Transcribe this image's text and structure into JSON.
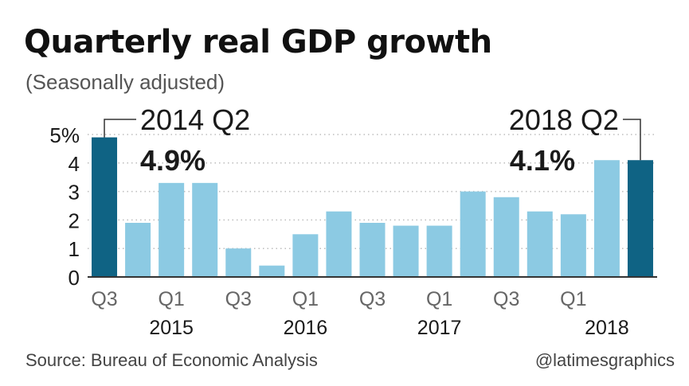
{
  "chart_data": {
    "type": "bar",
    "title": "Quarterly real GDP growth",
    "subtitle": "(Seasonally adjusted)",
    "ylabel": "",
    "xlabel": "",
    "ylim": [
      0,
      5
    ],
    "yticks": [
      {
        "value": 0,
        "label": "0"
      },
      {
        "value": 1,
        "label": "1"
      },
      {
        "value": 2,
        "label": "2"
      },
      {
        "value": 3,
        "label": "3"
      },
      {
        "value": 4,
        "label": "4"
      },
      {
        "value": 5,
        "label": "5%"
      }
    ],
    "grid": true,
    "categories": [
      "2014 Q2",
      "2014 Q3",
      "2014 Q4",
      "2015 Q1",
      "2015 Q2",
      "2015 Q3",
      "2015 Q4",
      "2016 Q1",
      "2016 Q2",
      "2016 Q3",
      "2016 Q4",
      "2017 Q1",
      "2017 Q2",
      "2017 Q3",
      "2017 Q4",
      "2018 Q1",
      "2018 Q2"
    ],
    "values": [
      4.9,
      1.9,
      3.3,
      3.3,
      1.0,
      0.4,
      1.5,
      2.3,
      1.9,
      1.8,
      1.8,
      3.0,
      2.8,
      2.3,
      2.2,
      4.1,
      4.1
    ],
    "highlight_indices": [
      0,
      16
    ],
    "x_tick_labels": [
      {
        "index": 0,
        "label": "Q3"
      },
      {
        "index": 2,
        "label": "Q1"
      },
      {
        "index": 4,
        "label": "Q3"
      },
      {
        "index": 6,
        "label": "Q1"
      },
      {
        "index": 8,
        "label": "Q3"
      },
      {
        "index": 10,
        "label": "Q1"
      },
      {
        "index": 12,
        "label": "Q3"
      },
      {
        "index": 14,
        "label": "Q1"
      }
    ],
    "year_labels": [
      {
        "index": 2,
        "label": "2015"
      },
      {
        "index": 6,
        "label": "2016"
      },
      {
        "index": 10,
        "label": "2017"
      },
      {
        "index": 15,
        "label": "2018"
      }
    ],
    "annotations": [
      {
        "index": 0,
        "label": "2014 Q2",
        "value_label": "4.9%",
        "side": "right"
      },
      {
        "index": 16,
        "label": "2018 Q2",
        "value_label": "4.1%",
        "side": "left"
      }
    ],
    "colors": {
      "bar": "#8ccae3",
      "highlight": "#0f6384",
      "grid": "#bdbdbd",
      "axis": "#333333",
      "text": "#1a1a1a",
      "muted": "#666666"
    }
  },
  "footer": {
    "source": "Source: Bureau of Economic Analysis",
    "credit": "@latimesgraphics"
  }
}
